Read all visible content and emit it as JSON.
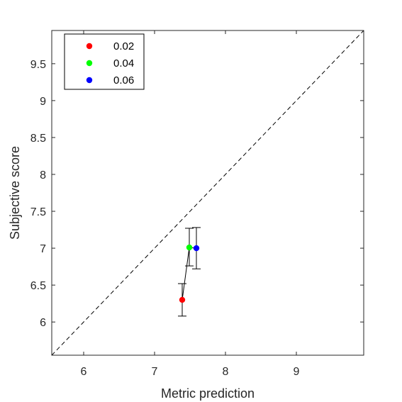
{
  "chart_data": {
    "type": "scatter",
    "xlabel": "Metric prediction",
    "ylabel": "Subjective score",
    "xlim": [
      5.55,
      9.95
    ],
    "ylim": [
      5.55,
      9.95
    ],
    "xticks": [
      6,
      7,
      8,
      9
    ],
    "yticks": [
      6,
      6.5,
      7,
      7.5,
      8,
      8.5,
      9,
      9.5
    ],
    "xtick_labels": [
      "6",
      "7",
      "8",
      "9"
    ],
    "ytick_labels": [
      "6",
      "6.5",
      "7",
      "7.5",
      "8",
      "8.5",
      "9",
      "9.5"
    ],
    "grid": false,
    "legend_position": "top-left",
    "reference_line": "dashed y = x",
    "series": [
      {
        "name": "0.02",
        "color": "#ff0000",
        "x": 7.39,
        "y": 6.3,
        "err_low": 6.08,
        "err_high": 6.52
      },
      {
        "name": "0.04",
        "color": "#00ff00",
        "x": 7.49,
        "y": 7.01,
        "err_low": 6.76,
        "err_high": 7.27
      },
      {
        "name": "0.06",
        "color": "#0000ff",
        "x": 7.59,
        "y": 7.0,
        "err_low": 6.72,
        "err_high": 7.28
      }
    ],
    "connecting_line_color": "#000000"
  }
}
